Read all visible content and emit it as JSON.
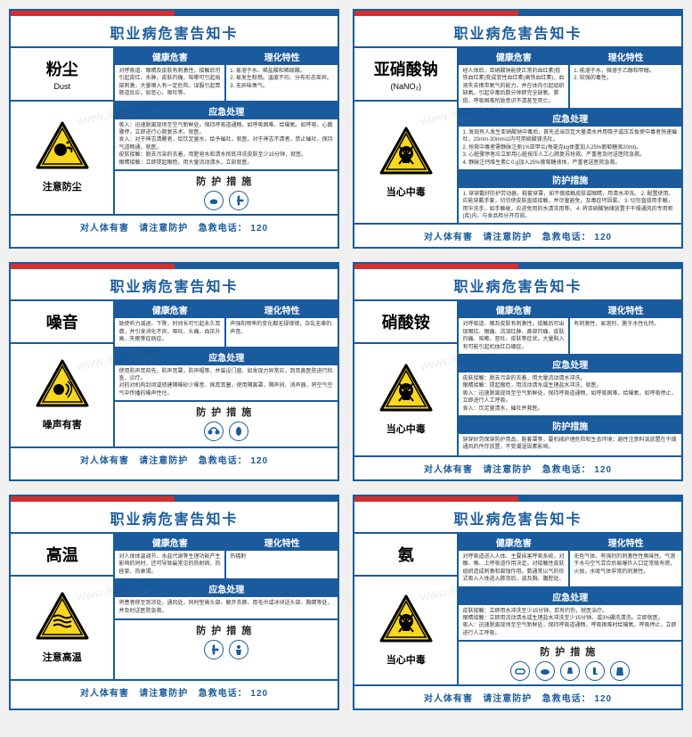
{
  "common": {
    "title": "职业病危害告知卡",
    "sections": {
      "health": "健康危害",
      "physical": "理化特性",
      "emergency": "应急处理",
      "protect": "防护措施"
    },
    "footer_harm": "对人体有害",
    "footer_notice": "请注意防护",
    "footer_tel_label": "急救电话：",
    "footer_tel": "120",
    "watermark": "www.ikutu.com"
  },
  "colors": {
    "primary": "#1a5b9d",
    "red": "#d32f2f",
    "yellow": "#f9d71c",
    "black": "#000000",
    "white": "#ffffff"
  },
  "cards": [
    {
      "name_cn": "粉尘",
      "name_en": "Dust",
      "warn_label": "注意防尘",
      "icon_type": "dust",
      "health": "对呼吸道、眼睛及皮肤有刺激性。接触后可引起皮红、水肿，皮肤灼痛，咳嗽可引起局部刺激，大量嗅入有一定危险。误服引起胃肠道反应，如恶心、呕吐等。",
      "physical": "1. 易溶于水、稀盐酸和稀硫酸。\n2. 易发生粉燃。温度不均、分布形态差异。\n3. 无异味臭气。",
      "emergency": "吸入：迅速脱离现场至空气新鲜处。保持呼吸道通畅。如呼吸困难，给输氧。如呼吸、心跳骤停，立即进行心肺复苏术。就医。\n食入：对于神志清醒者，给饮足量水，给予催吐，就医。对于神志不清者，禁止催吐，保持气道畅通，就医。\n皮肤接触：脱去污染的衣着，用肥皂水和清水彻底冲洗皮肤至少15分钟，就医。\n眼睛接触：立即提起眼睑，用大量流动清水，立刻就医。",
      "protect_icons": [
        "mask",
        "fan"
      ]
    },
    {
      "name_cn": "亚硝酸钠",
      "name_en": "(NaNO₂)",
      "warn_label": "当心中毒",
      "icon_type": "skull",
      "health": "经人体后，亚硝酸钠能使正常的血红素(低铁血红素)变成变性血红素(高铁血红素)，血液失去携带氧气的能力，并在体内引起组织缺氧。引起中毒后数分钟即完全缺氧、紫绀、呼吸困难所致意识不清甚至死亡。",
      "physical": "1. 能溶于水，微溶于乙醇和甲醇。\n2. 较强的毒性。",
      "emergency": "1. 发现有人发生亚硝酸钠中毒后，首先适当饮足大量清水并用筷子或压舌板使中毒者快速催吐，20mm-30mm以内可用硫酸镁洗吐。\n2. 抢救中毒者需静脉注册1%亚甲兰(每毫克kg体重加入25%葡萄糖液20ml)。\n3. 心脏骤停者应立即用心脏按压人工心肺复苏抢救。严重者及时送医院急救。\n4. 静脉注钙维生素C 0.g加入25%葡萄糖液体，严重者送医院急救。",
      "protect_icons": [],
      "protect_text": "1. 穿穿戴好防护劳动器，鞋套穿罩，如不慎接触皮肤或眼睛，用清水冲洗。\n2. 配置使用、应能穿戴手套，切勿使皮肤直接接触，并尽量避免，及毒症坏因雾。\n3. 切勿直接用手触，用毕洗手，如手触碰，应进免用的水清洗用等。\n4. 将亚硝酸钠储放置于干燥通风的专用柜(库)内，与食品柜分开存放。"
    },
    {
      "name_cn": "噪音",
      "name_en": "",
      "warn_label": "噪声有害",
      "icon_type": "noise",
      "health": "致使听力减退、下降，时间长可引起永久耳聋，并引发消化不良、呕吐、头痛、血压升高、失眠等症病症。",
      "physical": "声强和频率的变化都无规律律，杂乱无章的声音。",
      "emergency": "使用防声耳前先，防声耳罩，防声帽等，并装设门窗、如发现力异常应，到耳鼻医院进行检查、诊疗。\n对的对机构封闭或修建隔噪砂少噪音、佩耳耳塞，使用隔离罩，隔声间、消声器，将空气空气中传播的噪声性住。",
      "protect_icons": [
        "earmuff",
        "earplug"
      ]
    },
    {
      "name_cn": "硝酸铵",
      "name_en": "",
      "warn_label": "当心中毒",
      "icon_type": "skull",
      "health": "对呼吸道、眼及皮肤有刺激性。接触后可出现眼红、眼痛、流泪红肿、鼻部灼痛、皮肤灼痛、咳嗽、恶吐、皮肤等症状。大量购入有可能引起机体红白细症。",
      "physical": "有刺激性，易溶烈，脆于水性化特。",
      "emergency": "皮肤接触：脱去污染的衣着，用大量流动清水冲洗。\n眼睛接触：提起眼睑，用流动清水或生理盐水冲洗，就医。\n吸入：迅速脱离现场至空气新鲜处，保持呼吸道通畅，如呼吸困难，给输氧，如呼吸停止，立即进行人工呼吸。\n食入：饮足量清水，催吐并救医。",
      "protect_icons": [],
      "protect_text": "穿穿好劳保穿防护用品，鞋套罩等，要机械护理危险和生态环境；避性注意料该放置在干燥通风的件存放置，不受潮湿因素影响。"
    },
    {
      "name_cn": "高温",
      "name_en": "",
      "warn_label": "注意高温",
      "icon_type": "heat",
      "health": "对人体体温调节、水盐代谢等生理功能产生影响的同时，还可导致最常见的热射病、热痉挛、热衰竭。",
      "physical": "热辐射",
      "emergency": "将患者移至到凉处，通风处，同时垫高头部、解开衣裤、用毛巾或冰块送头部、胸窝等处，并及时送医院急救。",
      "protect_icons": [
        "fan",
        "person"
      ],
      "protect_text": "隔热，通风；个人防护；卫生保健和健康监护；合理的劳动休息。"
    },
    {
      "name_cn": "氨",
      "name_en": "",
      "warn_label": "当心中毒",
      "icon_type": "skull",
      "health": "对呼吸道进入人体、主要损害呼吸系统，对眼、喉、上呼吸道作用决定。对接触性皮肤组织造成刺激和腐蚀作用。氨通常以气的形式吸入人体进入肺泡后，波及胸、腹腔处。",
      "physical": "无色气体。有强烈的刺激性性臭味性。气溶于水与空气混合后易爆炸入口定常极有燃，火很，水吸气体非常的刺激性。",
      "emergency": "皮肤接触：立即用水冲洗至少15分钟，若有灼伤，就医治疗。\n眼睛接触：立即用流动清水或生理盐水冲洗至少15分钟。或3%硼洗清洗。立即就医。\n吸入：迅速脱离现场至空气新鲜处，保持呼吸道通畅，呼吸困难时给输氧，呼吸停止，立即进行人工呼吸。",
      "protect_icons": [
        "goggles",
        "mask2",
        "gloves",
        "boots",
        "suit"
      ]
    }
  ]
}
